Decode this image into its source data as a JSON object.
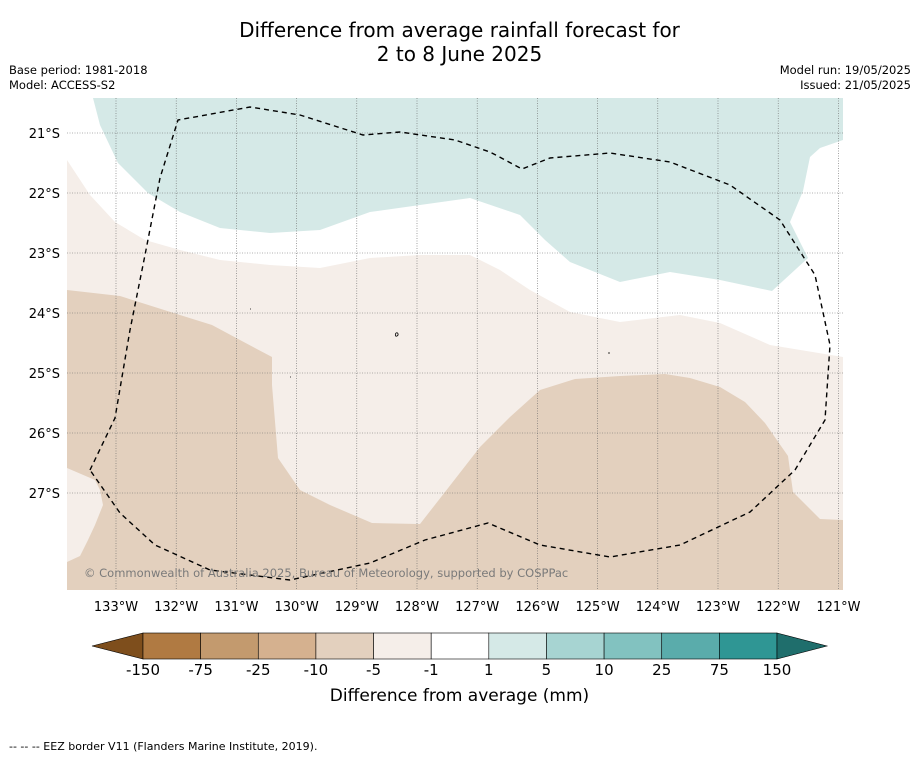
{
  "header": {
    "title_line1": "Difference from average rainfall forecast for",
    "title_line2": "2 to 8 June 2025",
    "base_period": "Base period: 1981-2018",
    "model": "Model: ACCESS-S2",
    "model_run": "Model run: 19/05/2025",
    "issued": "Issued: 21/05/2025"
  },
  "map": {
    "lat_labels": [
      "21°S",
      "22°S",
      "23°S",
      "24°S",
      "25°S",
      "26°S",
      "27°S"
    ],
    "lon_labels": [
      "133°W",
      "132°W",
      "131°W",
      "130°W",
      "129°W",
      "128°W",
      "127°W",
      "126°W",
      "125°W",
      "124°W",
      "123°W",
      "122°W",
      "121°W"
    ],
    "copyright": "© Commonwealth of Australia 2025, Bureau of Meteorology, supported by COSPPac",
    "category_colors": {
      "wet_1_5": "#d5e9e7",
      "neutral": "#ffffff",
      "dry_1_5": "#f5eee9",
      "dry_5_10": "#e3d0be"
    }
  },
  "colorbar": {
    "tick_labels": [
      "-150",
      "-75",
      "-25",
      "-10",
      "-5",
      "-1",
      "1",
      "5",
      "10",
      "25",
      "75",
      "150"
    ],
    "colors": [
      "#7e4e1c",
      "#b07a42",
      "#c39a6e",
      "#d5b18f",
      "#e3d0be",
      "#f5eee9",
      "#ffffff",
      "#d5e9e7",
      "#a7d4d2",
      "#82c2c0",
      "#5aacab",
      "#2f9694",
      "#1f6e6c"
    ],
    "title": "Difference from average (mm)"
  },
  "footer": {
    "legend": "-- -- -- EEZ border V11 (Flanders Marine Institute, 2019)."
  }
}
